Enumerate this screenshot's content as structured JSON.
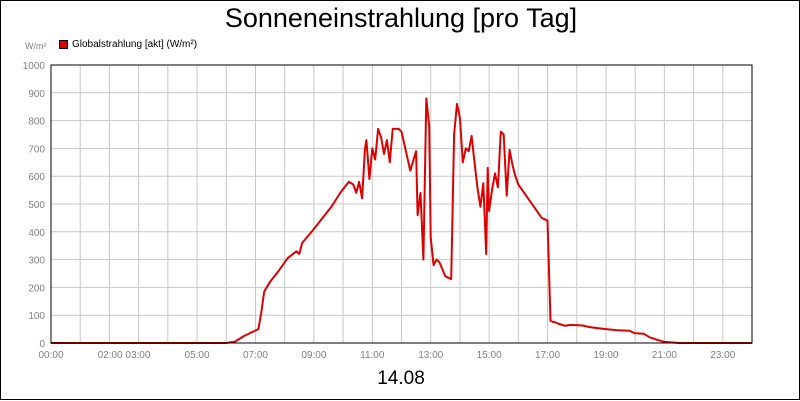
{
  "chart_data": {
    "type": "line",
    "title": "Sonneneinstrahlung [pro Tag]",
    "ylabel": "W/m²",
    "xlabel": "14.08",
    "ylim": [
      0,
      1000
    ],
    "yticks": [
      "0",
      "100",
      "200",
      "300",
      "400",
      "500",
      "600",
      "700",
      "800",
      "900",
      "1000"
    ],
    "xtick_labels": [
      "00:00",
      "02:00 03:00",
      "05:00",
      "07:00",
      "09:00",
      "11:00",
      "13:00",
      "15:00",
      "17:00",
      "19:00",
      "21:00",
      "23:00"
    ],
    "xtick_hours": [
      0,
      2.5,
      5,
      7,
      9,
      11,
      13,
      15,
      17,
      19,
      21,
      23
    ],
    "xlim_hours": [
      0,
      24
    ],
    "grid": true,
    "legend_position": "top-left",
    "series": [
      {
        "name": "Globalstrahlung [akt] (W/m²)",
        "color": "#dd0000",
        "x_hours": [
          0,
          6.0,
          6.3,
          6.6,
          6.9,
          7.1,
          7.2,
          7.3,
          7.5,
          7.8,
          8.1,
          8.4,
          8.5,
          8.6,
          8.8,
          9.0,
          9.3,
          9.6,
          9.9,
          10.2,
          10.35,
          10.45,
          10.55,
          10.65,
          10.75,
          10.8,
          10.9,
          11.0,
          11.1,
          11.2,
          11.3,
          11.4,
          11.5,
          11.6,
          11.7,
          11.8,
          11.9,
          12.0,
          12.3,
          12.5,
          12.55,
          12.65,
          12.75,
          12.85,
          12.95,
          13.0,
          13.1,
          13.2,
          13.3,
          13.5,
          13.7,
          13.8,
          13.9,
          14.0,
          14.1,
          14.2,
          14.3,
          14.4,
          14.5,
          14.6,
          14.7,
          14.8,
          14.9,
          14.95,
          15.0,
          15.1,
          15.2,
          15.3,
          15.4,
          15.5,
          15.6,
          15.7,
          15.8,
          15.9,
          16.0,
          16.2,
          16.4,
          16.6,
          16.8,
          17.0,
          17.1,
          17.2,
          17.25,
          17.35,
          17.6,
          17.8,
          18.2,
          18.4,
          18.6,
          19.0,
          19.4,
          19.8,
          20.0,
          20.3,
          20.5,
          20.8,
          21.0,
          21.5,
          24.0
        ],
        "values": [
          0,
          0,
          5,
          25,
          40,
          50,
          110,
          185,
          220,
          260,
          305,
          330,
          320,
          360,
          385,
          410,
          450,
          490,
          540,
          580,
          570,
          540,
          580,
          520,
          700,
          730,
          590,
          700,
          660,
          770,
          740,
          680,
          730,
          650,
          770,
          770,
          770,
          760,
          620,
          690,
          460,
          540,
          300,
          880,
          780,
          380,
          280,
          300,
          290,
          240,
          230,
          750,
          860,
          810,
          650,
          700,
          690,
          745,
          650,
          560,
          490,
          575,
          320,
          630,
          475,
          550,
          610,
          560,
          760,
          750,
          530,
          695,
          640,
          600,
          570,
          540,
          510,
          480,
          450,
          440,
          80,
          75,
          75,
          70,
          62,
          65,
          63,
          58,
          55,
          50,
          46,
          44,
          35,
          33,
          20,
          10,
          4,
          0,
          0
        ]
      }
    ]
  }
}
